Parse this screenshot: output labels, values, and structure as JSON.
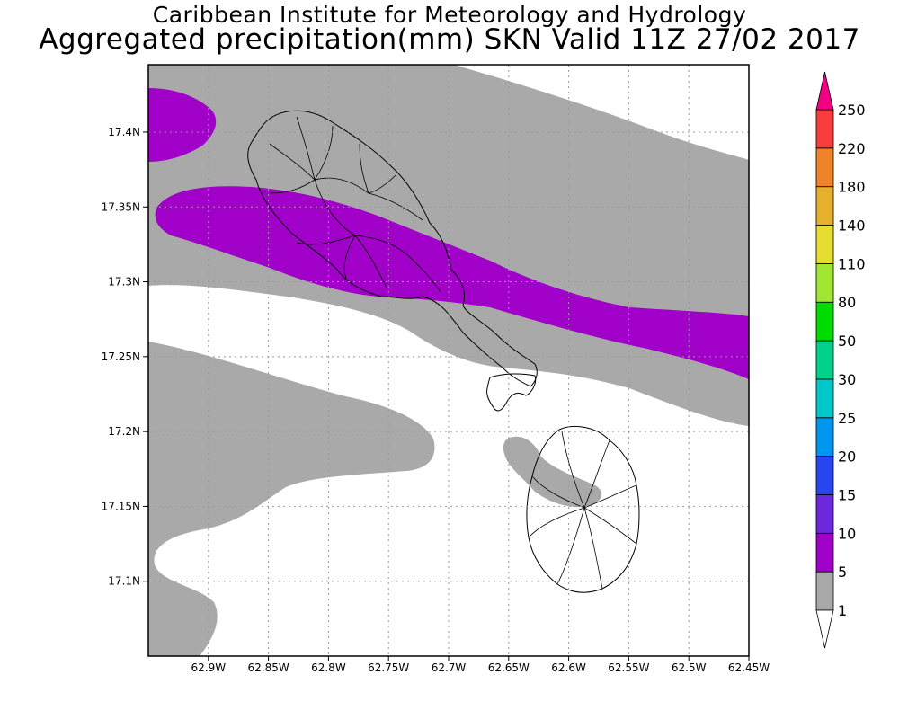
{
  "title_line1": "Caribbean Institute for Meteorology and Hydrology",
  "title_line2": "Aggregated precipitation(mm) SKN Valid 11Z 27/02 2017",
  "map": {
    "lon_range": [
      -62.95,
      -62.45
    ],
    "lat_range": [
      17.05,
      17.445
    ],
    "x_ticks": [
      {
        "value": -62.9,
        "label": "62.9W"
      },
      {
        "value": -62.85,
        "label": "62.85W"
      },
      {
        "value": -62.8,
        "label": "62.8W"
      },
      {
        "value": -62.75,
        "label": "62.75W"
      },
      {
        "value": -62.7,
        "label": "62.7W"
      },
      {
        "value": -62.65,
        "label": "62.65W"
      },
      {
        "value": -62.6,
        "label": "62.6W"
      },
      {
        "value": -62.55,
        "label": "62.55W"
      },
      {
        "value": -62.5,
        "label": "62.5W"
      },
      {
        "value": -62.45,
        "label": "62.45W"
      }
    ],
    "y_ticks": [
      {
        "value": 17.4,
        "label": "17.4N"
      },
      {
        "value": 17.35,
        "label": "17.35N"
      },
      {
        "value": 17.3,
        "label": "17.3N"
      },
      {
        "value": 17.25,
        "label": "17.25N"
      },
      {
        "value": 17.2,
        "label": "17.2N"
      },
      {
        "value": 17.15,
        "label": "17.15N"
      },
      {
        "value": 17.1,
        "label": "17.1N"
      }
    ],
    "grid": "dotted"
  },
  "legend": {
    "levels": [
      "1",
      "5",
      "10",
      "15",
      "20",
      "25",
      "30",
      "50",
      "80",
      "110",
      "140",
      "180",
      "220",
      "250"
    ],
    "colors": [
      "#a9a9a9",
      "#a000c8",
      "#6e28dc",
      "#2846f0",
      "#0096f0",
      "#00c8c8",
      "#00d28c",
      "#00dc00",
      "#a0e632",
      "#e6dc32",
      "#e6af2d",
      "#f08228",
      "#fa3c3c",
      "#f00082"
    ],
    "below_color": "#ffffff"
  }
}
